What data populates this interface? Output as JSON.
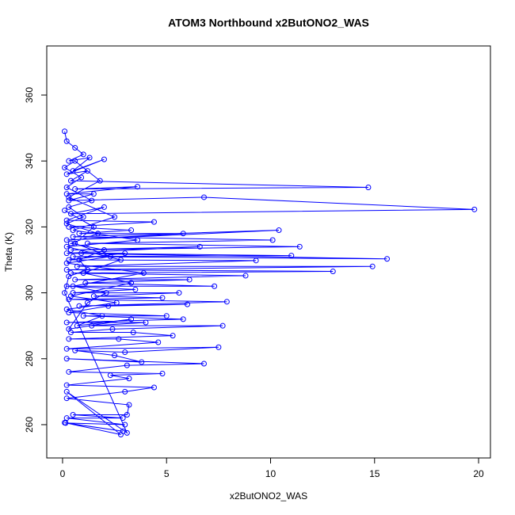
{
  "chart_data": {
    "type": "line",
    "markers": "circle",
    "title": "ATOM3 Northbound x2ButONO2_WAS",
    "x_label": "x2ButONO2_WAS",
    "y_label": "Theta (K)",
    "color": "#0000ff",
    "xlim": [
      -0.76,
      20.57
    ],
    "ylim": [
      249.9,
      374.9
    ],
    "xticks": [
      0,
      5,
      10,
      15,
      20
    ],
    "yticks": [
      260,
      280,
      300,
      320,
      340,
      360
    ],
    "x": [
      0.1,
      0.2,
      0.6,
      1.0,
      0.3,
      1.3,
      0.5,
      2.0,
      0.2,
      1.2,
      0.4,
      14.7,
      0.6,
      3.6,
      0.2,
      1.5,
      0.3,
      6.8,
      19.8,
      0.4,
      2.0,
      0.2,
      4.4,
      0.3,
      3.3,
      0.8,
      5.8,
      0.2,
      10.4,
      0.5,
      10.1,
      1.2,
      11.4,
      0.4,
      6.6,
      0.2,
      15.6,
      0.5,
      11.0,
      0.9,
      3.0,
      0.3,
      9.3,
      0.7,
      14.9,
      0.2,
      13.0,
      0.4,
      8.8,
      0.6,
      6.1,
      1.1,
      7.3,
      0.2,
      3.5,
      0.5,
      5.6,
      1.5,
      4.8,
      0.3,
      7.9,
      0.8,
      6.0,
      2.2,
      0.3,
      5.0,
      1.0,
      5.8,
      0.2,
      4.0,
      1.4,
      7.7,
      2.4,
      0.4,
      3.4,
      5.3,
      0.3,
      2.7,
      4.6,
      0.2,
      7.5,
      3.0,
      0.6,
      2.5,
      3.8,
      0.2,
      6.8,
      3.1,
      0.3,
      4.8,
      2.3,
      3.2,
      0.2,
      4.4,
      3.0,
      0.2,
      3.2,
      3.1,
      0.5,
      2.9,
      0.2,
      3.0,
      0.15,
      2.9,
      0.1,
      2.8,
      0.2,
      3.1,
      0.1,
      0.3,
      1.2,
      0.8,
      2.0,
      0.4,
      1.7,
      0.2,
      1.0,
      0.3,
      1.4,
      0.2,
      0.9,
      0.1,
      0.6,
      1.8,
      0.3,
      2.5,
      0.5,
      3.6,
      0.2,
      2.8,
      1.0,
      3.3,
      0.4,
      2.6,
      0.2,
      1.9,
      0.7,
      3.3,
      0.3,
      1.2,
      2.1,
      0.5,
      3.9,
      0.2,
      2.3,
      0.6,
      1.5,
      0.1
    ],
    "values": [
      349,
      346,
      344,
      342,
      340,
      341,
      337,
      340.5,
      336,
      337,
      334,
      332,
      331.5,
      332.2,
      330,
      330,
      328,
      329,
      325.3,
      324,
      326,
      322,
      321.5,
      320,
      319,
      318,
      318,
      316,
      319,
      317,
      316,
      315,
      314,
      313,
      314,
      312,
      310.3,
      311,
      311.3,
      312,
      312,
      310,
      309.8,
      308,
      308,
      307,
      306.5,
      306,
      305.2,
      304,
      304,
      303,
      302,
      302,
      301,
      300,
      300,
      299,
      298.5,
      298,
      297.3,
      296,
      296.5,
      296,
      294,
      293,
      293,
      292,
      291,
      291,
      290,
      290,
      289,
      288,
      288,
      287,
      286,
      286,
      285,
      283,
      283.5,
      282,
      282.5,
      281,
      279,
      280,
      278.5,
      278,
      276,
      275.5,
      275,
      274,
      272,
      271.3,
      270,
      268,
      266,
      263,
      263,
      262,
      262,
      260,
      260.5,
      258,
      260.6,
      257,
      270,
      257.5,
      300,
      305,
      307,
      310,
      313,
      315,
      318,
      321,
      323,
      326,
      328,
      332,
      335,
      338,
      340,
      334,
      329,
      323,
      319,
      316,
      314,
      310,
      306,
      303,
      299,
      297,
      295,
      293,
      290,
      292,
      289,
      297,
      300,
      302,
      306,
      309,
      311,
      315,
      320,
      325
    ]
  }
}
